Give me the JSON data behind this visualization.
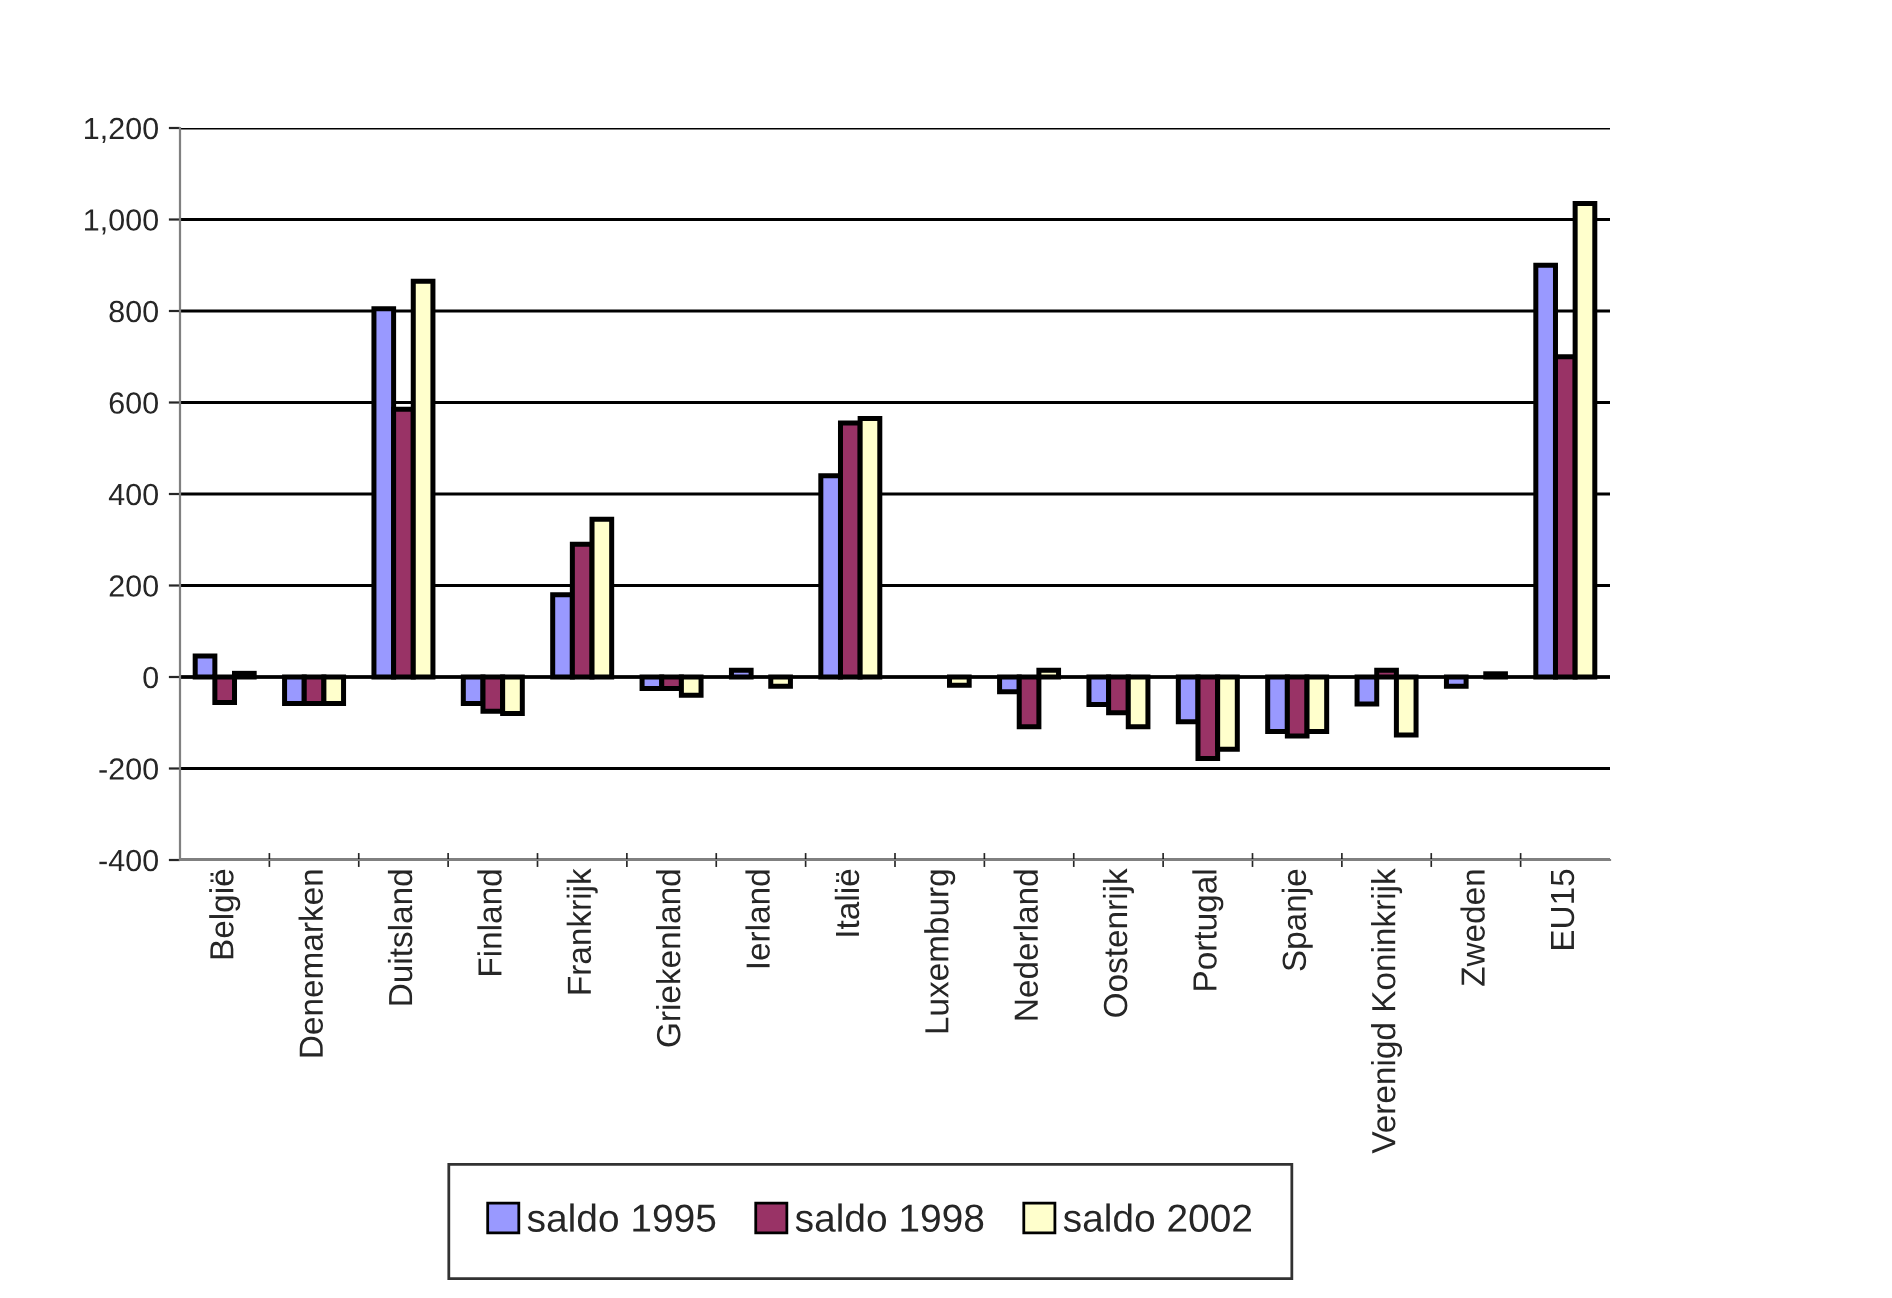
{
  "chart_data": {
    "type": "bar",
    "categories": [
      "België",
      "Denemarken",
      "Duitsland",
      "Finland",
      "Frankrijk",
      "Griekenland",
      "Ierland",
      "Italië",
      "Luxemburg",
      "Nederland",
      "Oostenrijk",
      "Portugal",
      "Spanje",
      "Verenigd Koninkrijk",
      "Zweden",
      "EU15"
    ],
    "series": [
      {
        "name": "saldo 1995",
        "color": "#9999ff",
        "values": [
          46,
          -58,
          805,
          -58,
          180,
          -25,
          15,
          440,
          null,
          -32,
          -60,
          -98,
          -119,
          -59,
          -20,
          900
        ]
      },
      {
        "name": "saldo 1998",
        "color": "#993366",
        "values": [
          -56,
          -58,
          585,
          -75,
          290,
          -25,
          null,
          555,
          null,
          -109,
          -78,
          -178,
          -129,
          15,
          null,
          700
        ]
      },
      {
        "name": "saldo 2002",
        "color": "#ffffcc",
        "values": [
          8,
          -58,
          865,
          -80,
          345,
          -40,
          -20,
          565,
          -18,
          15,
          -109,
          -158,
          -119,
          -127,
          7,
          1035
        ]
      }
    ],
    "ylim": [
      -400,
      1200
    ],
    "yticks": [
      {
        "value": -400,
        "label": "-400"
      },
      {
        "value": -200,
        "label": "-200"
      },
      0,
      200,
      400,
      600,
      800,
      {
        "value": 1000,
        "label": "1,000"
      },
      {
        "value": 1200,
        "label": "1,200"
      }
    ],
    "grid": "y",
    "legend": "bottom"
  }
}
